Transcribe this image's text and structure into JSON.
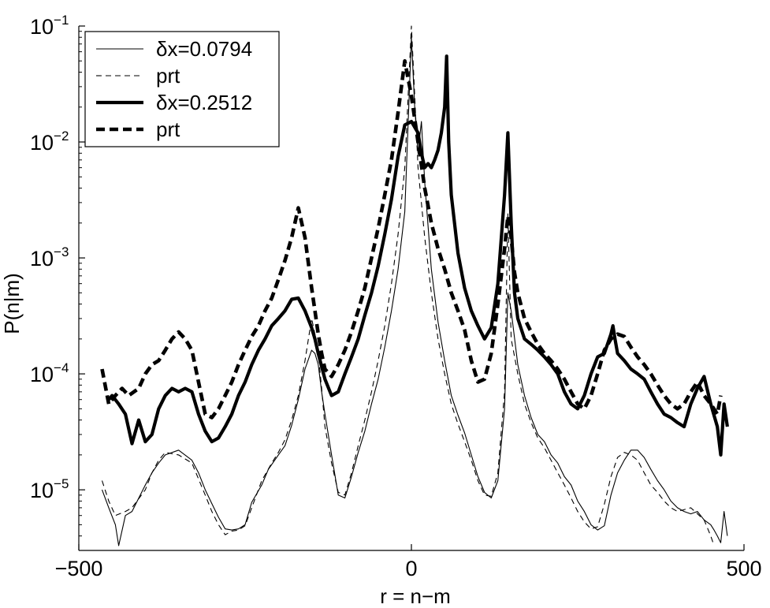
{
  "chart_data": {
    "type": "line",
    "title": "",
    "xlabel": "r = n−m",
    "ylabel": "P(n|m)",
    "xlim": [
      -500,
      500
    ],
    "ylim": [
      3e-06,
      0.1
    ],
    "yscale": "log",
    "xticks": [
      -500,
      0,
      500
    ],
    "xtick_labels": [
      "−500",
      "0",
      "500"
    ],
    "yticks": [
      {
        "value": 0.1,
        "base": "10",
        "exp": "−1"
      },
      {
        "value": 0.01,
        "base": "10",
        "exp": "−2"
      },
      {
        "value": 0.001,
        "base": "10",
        "exp": "−3"
      },
      {
        "value": 0.0001,
        "base": "10",
        "exp": "−4"
      },
      {
        "value": 1e-05,
        "base": "10",
        "exp": "−5"
      }
    ],
    "grid": false,
    "legend_position": "top-left",
    "series": [
      {
        "name": "δx=0.0794",
        "style": "thin-solid",
        "x": [
          -465,
          -455,
          -445,
          -440,
          -430,
          -420,
          -400,
          -390,
          -380,
          -370,
          -350,
          -330,
          -320,
          -310,
          -300,
          -290,
          -280,
          -270,
          -260,
          -250,
          -240,
          -225,
          -215,
          -200,
          -190,
          -180,
          -170,
          -160,
          -150,
          -145,
          -140,
          -135,
          -130,
          -120,
          -110,
          -100,
          -90,
          -80,
          -70,
          -60,
          -50,
          -40,
          -30,
          -20,
          -10,
          0,
          5,
          10,
          15,
          20,
          25,
          30,
          40,
          50,
          60,
          70,
          80,
          90,
          100,
          110,
          120,
          130,
          140,
          145,
          150,
          160,
          170,
          180,
          190,
          200,
          210,
          220,
          230,
          240,
          250,
          260,
          270,
          280,
          290,
          300,
          310,
          320,
          330,
          340,
          350,
          360,
          370,
          380,
          390,
          400,
          410,
          420,
          430,
          440,
          450,
          455,
          460,
          465,
          470,
          475
        ],
        "y": [
          1e-05,
          7e-06,
          5e-06,
          3.3e-06,
          6e-06,
          6.5e-06,
          1.1e-05,
          1.4e-05,
          1.7e-05,
          2e-05,
          2.2e-05,
          1.8e-05,
          1.4e-05,
          1e-05,
          7.6e-06,
          5.8e-06,
          4.6e-06,
          4.5e-06,
          4.6e-06,
          5e-06,
          7.8e-06,
          1.1e-05,
          1.5e-05,
          2e-05,
          2.4e-05,
          3.6e-05,
          6e-05,
          0.00011,
          0.00016,
          0.00015,
          0.00012,
          7e-05,
          4.5e-05,
          2e-05,
          9e-06,
          8.5e-06,
          1.3e-05,
          2.1e-05,
          3.2e-05,
          5.5e-05,
          9e-05,
          0.00017,
          0.00035,
          0.0008,
          0.0025,
          0.08,
          0.02,
          0.008,
          0.015,
          0.0045,
          0.0019,
          0.0008,
          0.00028,
          0.00013,
          6.5e-05,
          4.4e-05,
          3.1e-05,
          2e-05,
          1.3e-05,
          9.5e-06,
          8.5e-06,
          1.2e-05,
          5e-05,
          0.0005,
          0.00035,
          0.00012,
          6.5e-05,
          4.2e-05,
          3e-05,
          2.6e-05,
          2e-05,
          1.7e-05,
          1.3e-05,
          1.1e-05,
          8e-06,
          6.5e-06,
          5e-06,
          4.5e-06,
          4.9e-06,
          9e-06,
          1.4e-05,
          1.8e-05,
          2.2e-05,
          2.2e-05,
          1.9e-05,
          1.5e-05,
          1.2e-05,
          1e-05,
          8e-06,
          7e-06,
          6.5e-06,
          6.2e-06,
          6.5e-06,
          5.5e-06,
          5e-06,
          4.5e-06,
          4e-06,
          3.5e-06,
          6.5e-06,
          4e-06
        ]
      },
      {
        "name": "prt",
        "style": "thin-dashed",
        "x": [
          -465,
          -455,
          -445,
          -430,
          -420,
          -400,
          -390,
          -380,
          -370,
          -350,
          -330,
          -310,
          -300,
          -290,
          -280,
          -270,
          -260,
          -250,
          -240,
          -225,
          -210,
          -200,
          -190,
          -180,
          -170,
          -160,
          -150,
          -145,
          -140,
          -135,
          -130,
          -120,
          -110,
          -100,
          -90,
          -80,
          -70,
          -60,
          -50,
          -40,
          -30,
          -20,
          -10,
          0,
          5,
          10,
          20,
          30,
          40,
          50,
          60,
          70,
          80,
          90,
          100,
          110,
          120,
          130,
          140,
          145,
          150,
          160,
          170,
          180,
          190,
          200,
          210,
          220,
          230,
          240,
          250,
          260,
          270,
          280,
          290,
          300,
          310,
          320,
          330,
          340,
          350,
          360,
          370,
          380,
          390,
          400,
          420,
          440,
          450,
          455
        ],
        "y": [
          1.2e-05,
          8e-06,
          6e-06,
          6.5e-06,
          7e-06,
          1e-05,
          1.4e-05,
          1.8e-05,
          2.1e-05,
          2e-05,
          1.7e-05,
          9e-06,
          6.5e-06,
          5e-06,
          4.1e-06,
          4.4e-06,
          4.5e-06,
          4.9e-06,
          7e-06,
          1.2e-05,
          1.7e-05,
          2.1e-05,
          2.7e-05,
          4e-05,
          6.5e-05,
          0.00013,
          0.0003,
          0.00022,
          0.00015,
          7.5e-05,
          3.5e-05,
          1.7e-05,
          9.5e-06,
          9e-06,
          1.4e-05,
          2.4e-05,
          4e-05,
          7e-05,
          0.00013,
          0.00026,
          0.0006,
          0.0016,
          0.006,
          0.1,
          0.025,
          0.006,
          0.0015,
          0.0005,
          0.0002,
          0.0001,
          5.5e-05,
          3.7e-05,
          2.6e-05,
          1.8e-05,
          1.2e-05,
          9e-06,
          8.8e-06,
          1.4e-05,
          7e-05,
          0.0024,
          0.0002,
          0.0001,
          5.5e-05,
          3.8e-05,
          2.8e-05,
          2.3e-05,
          1.8e-05,
          1.4e-05,
          1.1e-05,
          8.5e-06,
          6.5e-06,
          5.3e-06,
          4.6e-06,
          4.8e-06,
          7.5e-06,
          1.3e-05,
          1.9e-05,
          2.1e-05,
          2e-05,
          1.8e-05,
          1.4e-05,
          1.1e-05,
          9.5e-06,
          8e-06,
          7e-06,
          6.5e-06,
          7e-06,
          5.5e-06,
          4e-06,
          3.3e-06
        ]
      },
      {
        "name": "δx=0.2512",
        "style": "thick-solid",
        "x": [
          -455,
          -450,
          -440,
          -430,
          -420,
          -410,
          -400,
          -390,
          -380,
          -370,
          -360,
          -350,
          -340,
          -330,
          -320,
          -310,
          -300,
          -290,
          -280,
          -270,
          -260,
          -250,
          -240,
          -230,
          -220,
          -210,
          -200,
          -190,
          -180,
          -170,
          -160,
          -150,
          -145,
          -140,
          -130,
          -120,
          -110,
          -100,
          -90,
          -80,
          -70,
          -60,
          -50,
          -40,
          -30,
          -20,
          -10,
          0,
          10,
          15,
          20,
          25,
          30,
          35,
          40,
          45,
          50,
          53,
          56,
          60,
          70,
          80,
          90,
          100,
          110,
          120,
          130,
          140,
          145,
          150,
          155,
          160,
          170,
          180,
          190,
          200,
          210,
          220,
          230,
          240,
          250,
          260,
          270,
          280,
          290,
          300,
          303,
          306,
          310,
          320,
          330,
          340,
          350,
          360,
          370,
          380,
          390,
          400,
          410,
          420,
          430,
          440,
          450,
          460,
          465,
          470,
          475
        ],
        "y": [
          6e-05,
          6.5e-05,
          5.5e-05,
          4.5e-05,
          2.5e-05,
          4e-05,
          2.6e-05,
          3e-05,
          5e-05,
          6.5e-05,
          7.5e-05,
          7e-05,
          7.5e-05,
          7e-05,
          4.5e-05,
          3.2e-05,
          2.6e-05,
          2.8e-05,
          3.5e-05,
          4.5e-05,
          6.5e-05,
          8.5e-05,
          0.00012,
          0.00016,
          0.0002,
          0.00026,
          0.0003,
          0.00035,
          0.00044,
          0.00045,
          0.00035,
          0.00025,
          0.0002,
          0.00015,
          9e-05,
          6.5e-05,
          7e-05,
          0.0001,
          0.00014,
          0.0002,
          0.00032,
          0.0005,
          0.00085,
          0.0016,
          0.0032,
          0.0075,
          0.014,
          0.015,
          0.012,
          0.008,
          0.006,
          0.0065,
          0.006,
          0.007,
          0.0085,
          0.012,
          0.02,
          0.055,
          0.01,
          0.0035,
          0.0011,
          0.00055,
          0.00035,
          0.00026,
          0.0002,
          0.00025,
          0.0006,
          0.0035,
          0.012,
          0.002,
          0.0005,
          0.0003,
          0.0002,
          0.00018,
          0.00016,
          0.00014,
          0.00012,
          0.0001,
          7e-05,
          5.5e-05,
          5e-05,
          6.5e-05,
          0.0001,
          0.00014,
          0.00015,
          0.00022,
          0.00026,
          0.0002,
          0.00015,
          0.00013,
          0.00011,
          0.0001,
          9e-05,
          7e-05,
          5.5e-05,
          4.5e-05,
          4.2e-05,
          3.8e-05,
          3.5e-05,
          5.5e-05,
          7.5e-05,
          9.5e-05,
          5.5e-05,
          3.5e-05,
          2e-05,
          5.5e-05,
          3.5e-05
        ]
      },
      {
        "name": "prt",
        "style": "thick-dashed",
        "x": [
          -465,
          -455,
          -445,
          -435,
          -425,
          -410,
          -400,
          -390,
          -380,
          -370,
          -360,
          -350,
          -340,
          -330,
          -320,
          -310,
          -300,
          -290,
          -280,
          -270,
          -260,
          -250,
          -240,
          -230,
          -220,
          -210,
          -200,
          -190,
          -180,
          -170,
          -160,
          -150,
          -145,
          -140,
          -135,
          -130,
          -120,
          -110,
          -100,
          -90,
          -80,
          -70,
          -60,
          -50,
          -40,
          -30,
          -20,
          -10,
          0,
          10,
          20,
          30,
          40,
          50,
          60,
          70,
          80,
          90,
          100,
          110,
          120,
          130,
          140,
          145,
          150,
          155,
          160,
          170,
          180,
          190,
          200,
          210,
          220,
          230,
          240,
          250,
          260,
          270,
          280,
          290,
          300,
          310,
          320,
          330,
          340,
          350,
          360,
          370,
          380,
          390,
          400,
          410,
          420,
          430,
          440,
          450,
          460,
          465
        ],
        "y": [
          0.00011,
          5.5e-05,
          6.5e-05,
          7.5e-05,
          6.5e-05,
          7.5e-05,
          0.0001,
          0.00012,
          0.00013,
          0.00016,
          0.0002,
          0.00023,
          0.0002,
          0.00016,
          8.5e-05,
          4.5e-05,
          4.2e-05,
          5e-05,
          6.5e-05,
          8.5e-05,
          0.00012,
          0.00016,
          0.00021,
          0.00026,
          0.00035,
          0.00045,
          0.00065,
          0.00095,
          0.0015,
          0.0027,
          0.0015,
          0.00055,
          0.00035,
          0.00022,
          0.00015,
          0.00011,
          9.5e-05,
          0.00012,
          0.00016,
          0.00023,
          0.00035,
          0.00055,
          0.001,
          0.0018,
          0.0035,
          0.007,
          0.018,
          0.05,
          0.025,
          0.01,
          0.004,
          0.002,
          0.0012,
          0.0008,
          0.0005,
          0.00035,
          0.00024,
          0.00013,
          8.5e-05,
          9e-05,
          0.00015,
          0.0004,
          0.0012,
          0.0023,
          0.0015,
          0.00075,
          0.0005,
          0.0003,
          0.00023,
          0.00018,
          0.00015,
          0.00013,
          0.00011,
          9e-05,
          7e-05,
          5.5e-05,
          5e-05,
          6.5e-05,
          0.0001,
          0.00016,
          0.0002,
          0.00022,
          0.00021,
          0.00017,
          0.00014,
          0.00012,
          0.0001,
          8e-05,
          6.5e-05,
          5.5e-05,
          5e-05,
          5.5e-05,
          7e-05,
          8.5e-05,
          6.5e-05,
          5.5e-05,
          4.5e-05,
          6.5e-05
        ]
      }
    ]
  }
}
